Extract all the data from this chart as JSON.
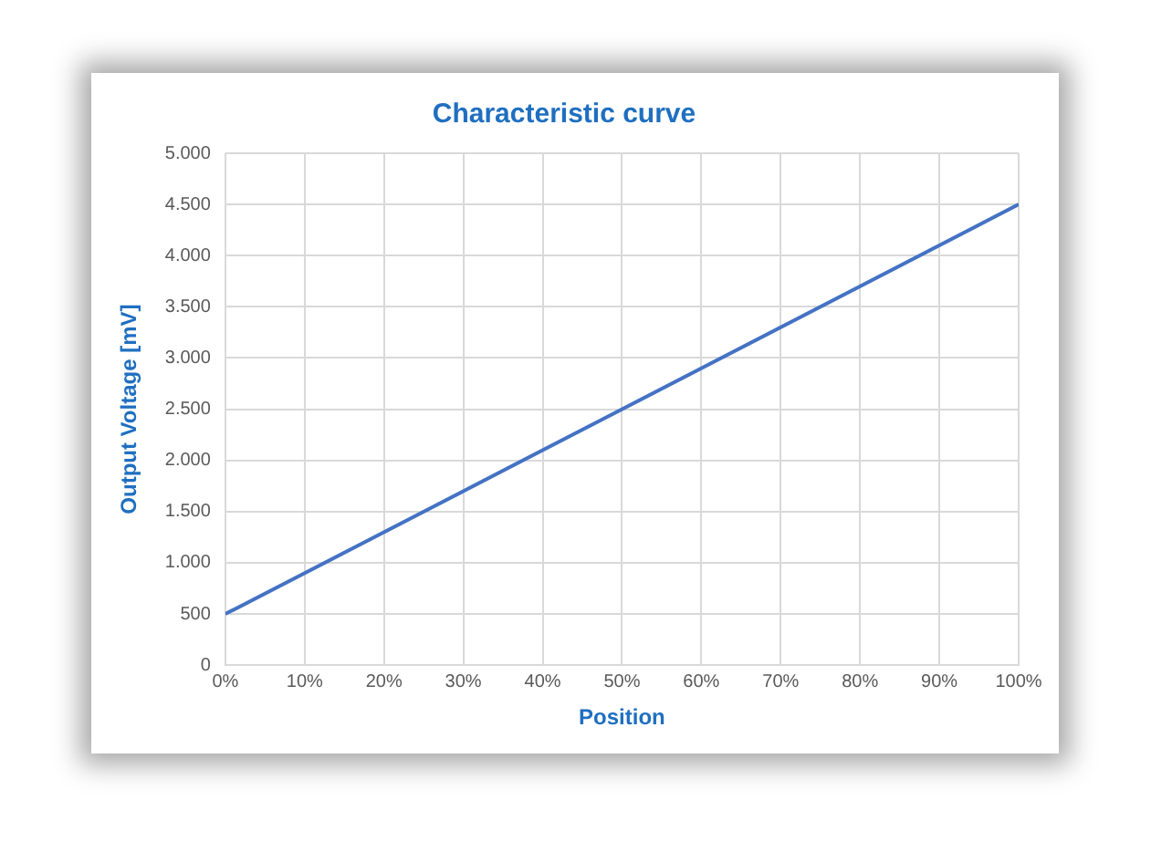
{
  "chart_data": {
    "type": "line",
    "title": "Characteristic curve",
    "xlabel": "Position",
    "ylabel": "Output Voltage [mV]",
    "x": [
      0,
      100
    ],
    "series": [
      {
        "color": "#4472c4",
        "values": [
          500,
          4500
        ]
      }
    ],
    "xlim": [
      0,
      100
    ],
    "xticks": [
      {
        "value": 0,
        "label": "0%"
      },
      {
        "value": 10,
        "label": "10%"
      },
      {
        "value": 20,
        "label": "20%"
      },
      {
        "value": 30,
        "label": "30%"
      },
      {
        "value": 40,
        "label": "40%"
      },
      {
        "value": 50,
        "label": "50%"
      },
      {
        "value": 60,
        "label": "60%"
      },
      {
        "value": 70,
        "label": "70%"
      },
      {
        "value": 80,
        "label": "80%"
      },
      {
        "value": 90,
        "label": "90%"
      },
      {
        "value": 100,
        "label": "100%"
      }
    ],
    "ylim": [
      0,
      5000
    ],
    "yticks": [
      0,
      {
        "value": 500,
        "label": "500"
      },
      {
        "value": 1000,
        "label": "1.000"
      },
      {
        "value": 1500,
        "label": "1.500"
      },
      {
        "value": 2000,
        "label": "2.000"
      },
      {
        "value": 2500,
        "label": "2.500"
      },
      {
        "value": 3000,
        "label": "3.000"
      },
      {
        "value": 3500,
        "label": "3.500"
      },
      {
        "value": 4000,
        "label": "4.000"
      },
      {
        "value": 4500,
        "label": "4.500"
      },
      {
        "value": 5000,
        "label": "5.000"
      }
    ],
    "grid": true,
    "legend": false,
    "marker": "none",
    "line_style": "solid"
  }
}
